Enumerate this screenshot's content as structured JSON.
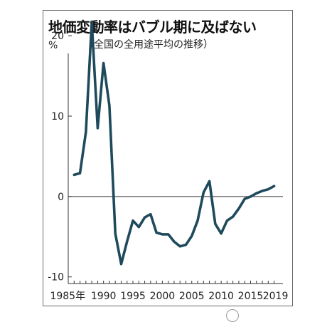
{
  "header": {
    "title": "地価変動率はバブル期に及ばない",
    "subtitle": "（全国の全用途平均の推移）",
    "unit": "%"
  },
  "colors": {
    "line": "#1e4a5c",
    "axis": "#333333",
    "frame": "#6b6b6b"
  },
  "chart_data": {
    "type": "line",
    "title": "地価変動率はバブル期に及ばない",
    "subtitle": "（全国の全用途平均の推移）",
    "ylabel": "%",
    "xlabel": "",
    "xlim": [
      1984,
      2020.5
    ],
    "ylim": [
      -11,
      24
    ],
    "y_ticks": [
      20,
      10,
      0,
      -10
    ],
    "y_tick_labels": [
      "20",
      "10",
      "0",
      "-10"
    ],
    "x_tick_labels": [
      {
        "x": 1985,
        "label": "1985年"
      },
      {
        "x": 1990,
        "label": "1990"
      },
      {
        "x": 1995,
        "label": "1995"
      },
      {
        "x": 2000,
        "label": "2000"
      },
      {
        "x": 2005,
        "label": "2005"
      },
      {
        "x": 2010,
        "label": "2010"
      },
      {
        "x": 2015,
        "label": "2015"
      },
      {
        "x": 2019,
        "label": "2019"
      }
    ],
    "zero_line": true,
    "grid": false,
    "series": [
      {
        "x": [
          1985,
          1986,
          1987,
          1988,
          1989,
          1990,
          1991,
          1992,
          1993,
          1994,
          1995,
          1996,
          1997,
          1998,
          1999,
          2000,
          2001,
          2002,
          2003,
          2004,
          2005,
          2006,
          2007,
          2008,
          2009,
          2010,
          2011,
          2012,
          2013,
          2014,
          2015,
          2016,
          2017,
          2018,
          2019
        ],
        "values": [
          2.7,
          2.9,
          8.0,
          21.7,
          8.5,
          16.6,
          11.3,
          -4.6,
          -8.4,
          -5.6,
          -3.0,
          -3.8,
          -2.6,
          -2.2,
          -4.5,
          -4.7,
          -4.7,
          -5.6,
          -6.2,
          -6.0,
          -4.9,
          -3.0,
          0.5,
          1.9,
          -3.4,
          -4.6,
          -3.0,
          -2.5,
          -1.5,
          -0.3,
          0.0,
          0.4,
          0.7,
          0.9,
          1.3
        ]
      }
    ]
  }
}
